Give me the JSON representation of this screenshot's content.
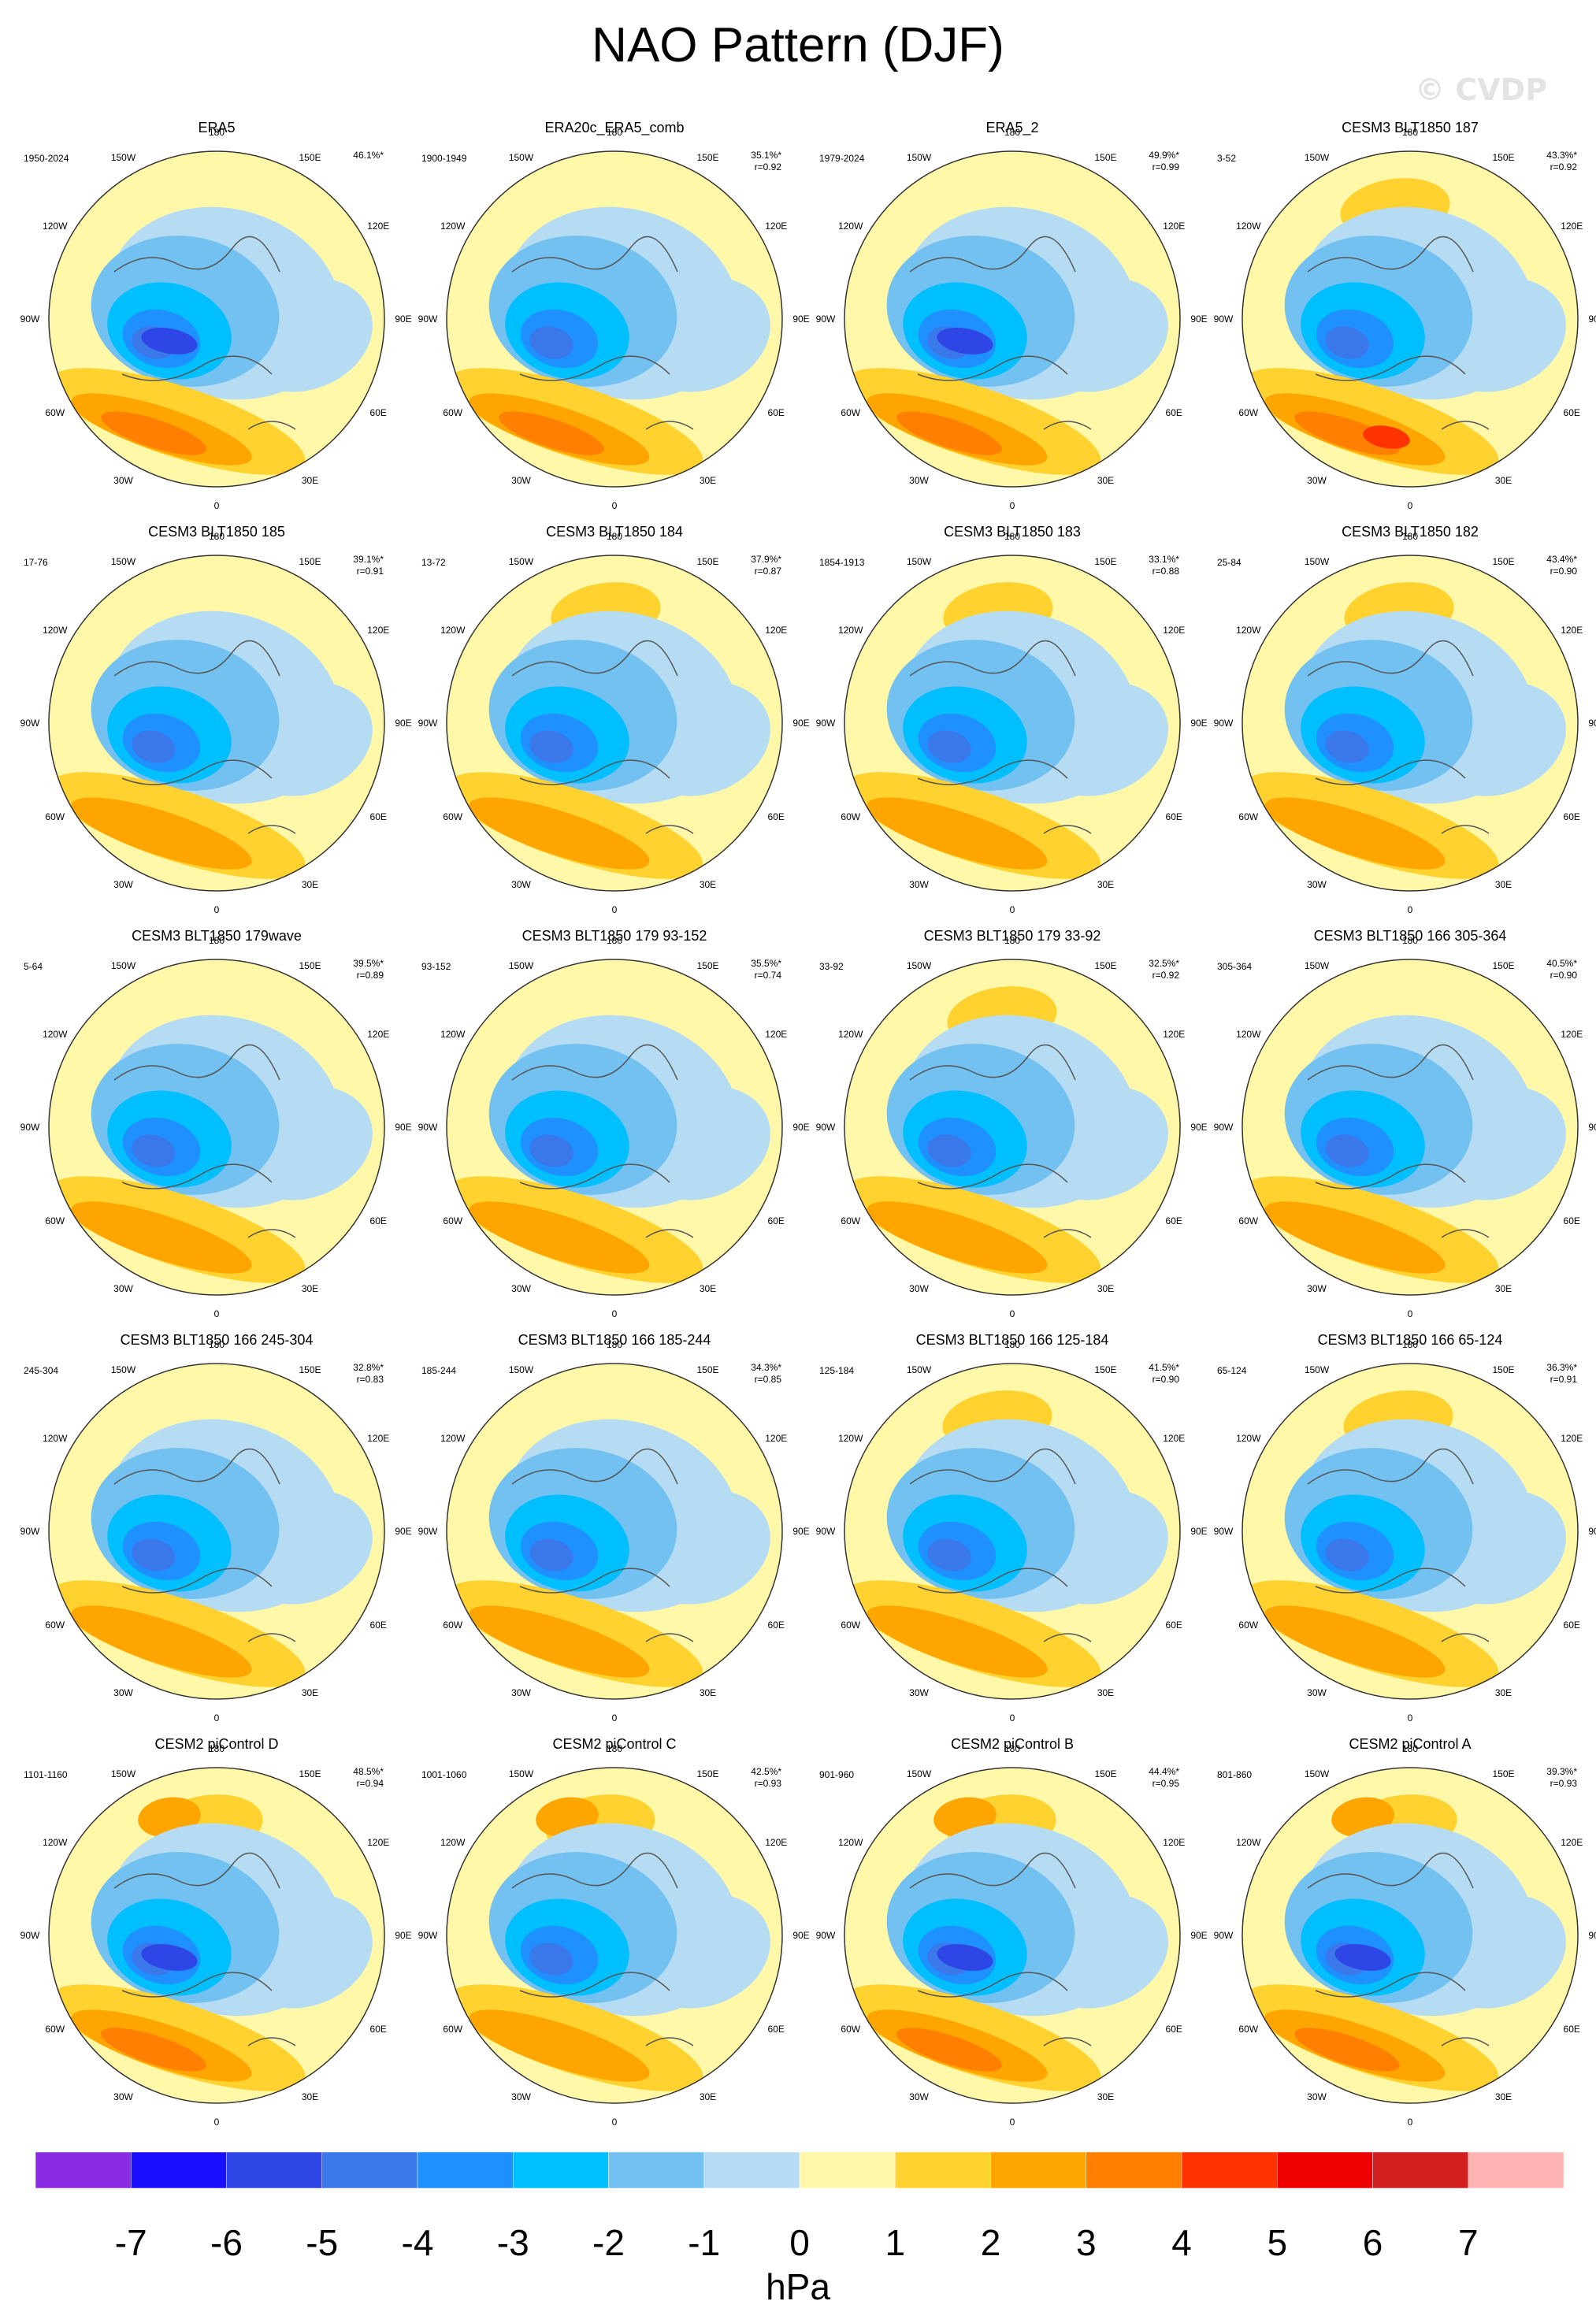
{
  "title": "NAO Pattern (DJF)",
  "watermark": "© CVDP",
  "lon_labels": [
    "180",
    "150E",
    "120E",
    "90E",
    "60E",
    "30E",
    "0",
    "30W",
    "60W",
    "90W",
    "120W",
    "150W"
  ],
  "panels": [
    {
      "title": "ERA5",
      "period": "1950-2024",
      "pct": "46.1%*",
      "r": ""
    },
    {
      "title": "ERA20c_ERA5_comb",
      "period": "1900-1949",
      "pct": "35.1%*",
      "r": "r=0.92"
    },
    {
      "title": "ERA5_2",
      "period": "1979-2024",
      "pct": "49.9%*",
      "r": "r=0.99"
    },
    {
      "title": "CESM3 BLT1850 187",
      "period": "3-52",
      "pct": "43.3%*",
      "r": "r=0.92"
    },
    {
      "title": "CESM3 BLT1850 185",
      "period": "17-76",
      "pct": "39.1%*",
      "r": "r=0.91"
    },
    {
      "title": "CESM3 BLT1850 184",
      "period": "13-72",
      "pct": "37.9%*",
      "r": "r=0.87"
    },
    {
      "title": "CESM3 BLT1850 183",
      "period": "1854-1913",
      "pct": "33.1%*",
      "r": "r=0.88"
    },
    {
      "title": "CESM3 BLT1850 182",
      "period": "25-84",
      "pct": "43.4%*",
      "r": "r=0.90"
    },
    {
      "title": "CESM3 BLT1850 179wave",
      "period": "5-64",
      "pct": "39.5%*",
      "r": "r=0.89"
    },
    {
      "title": "CESM3 BLT1850 179 93-152",
      "period": "93-152",
      "pct": "35.5%*",
      "r": "r=0.74"
    },
    {
      "title": "CESM3 BLT1850 179 33-92",
      "period": "33-92",
      "pct": "32.5%*",
      "r": "r=0.92"
    },
    {
      "title": "CESM3 BLT1850 166 305-364",
      "period": "305-364",
      "pct": "40.5%*",
      "r": "r=0.90"
    },
    {
      "title": "CESM3 BLT1850 166 245-304",
      "period": "245-304",
      "pct": "32.8%*",
      "r": "r=0.83"
    },
    {
      "title": "CESM3 BLT1850 166 185-244",
      "period": "185-244",
      "pct": "34.3%*",
      "r": "r=0.85"
    },
    {
      "title": "CESM3 BLT1850 166 125-184",
      "period": "125-184",
      "pct": "41.5%*",
      "r": "r=0.90"
    },
    {
      "title": "CESM3 BLT1850 166 65-124",
      "period": "65-124",
      "pct": "36.3%*",
      "r": "r=0.91"
    },
    {
      "title": "CESM2 piControl D",
      "period": "1101-1160",
      "pct": "48.5%*",
      "r": "r=0.94"
    },
    {
      "title": "CESM2 piControl C",
      "period": "1001-1060",
      "pct": "42.5%*",
      "r": "r=0.93"
    },
    {
      "title": "CESM2 piControl B",
      "period": "901-960",
      "pct": "44.4%*",
      "r": "r=0.95"
    },
    {
      "title": "CESM2 piControl A",
      "period": "801-860",
      "pct": "39.3%*",
      "r": "r=0.93"
    }
  ],
  "colorbar": {
    "colors": [
      "#8a2be2",
      "#1a0fff",
      "#2f46e6",
      "#3b78ea",
      "#1e90ff",
      "#00bfff",
      "#72c1f0",
      "#b6dcf4",
      "#fff8a8",
      "#ffd230",
      "#ffa500",
      "#ff7f00",
      "#ff3300",
      "#ef0000",
      "#d22020",
      "#ffb4b4"
    ],
    "ticks": [
      "-7",
      "-6",
      "-5",
      "-4",
      "-3",
      "-2",
      "-1",
      "0",
      "1",
      "2",
      "3",
      "4",
      "5",
      "6",
      "7"
    ],
    "label": "hPa"
  }
}
